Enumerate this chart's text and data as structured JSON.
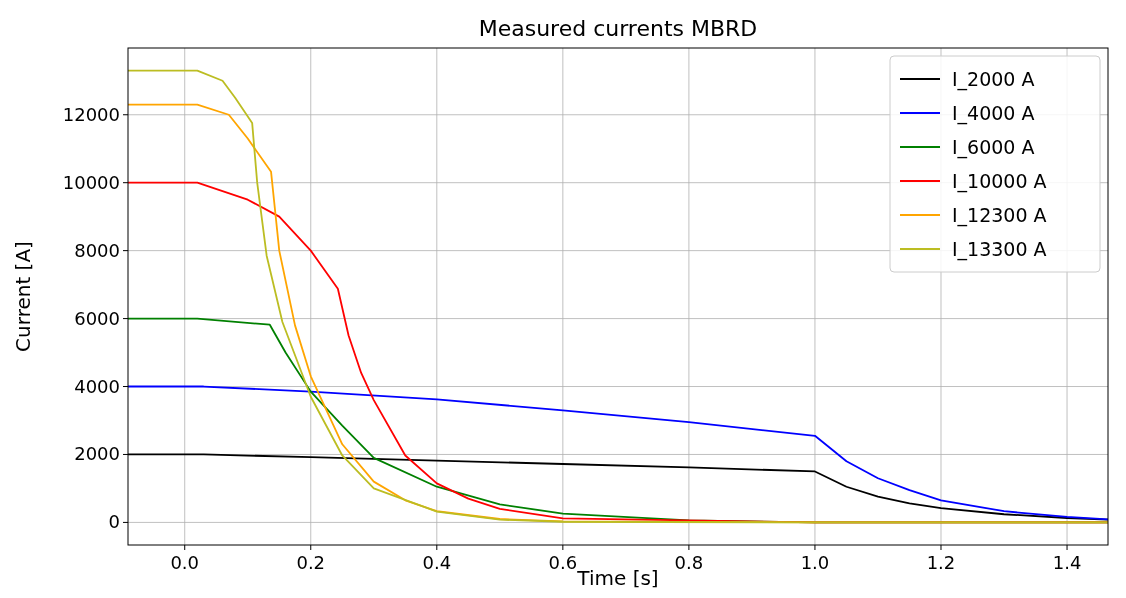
{
  "chart_data": {
    "type": "line",
    "title": "Measured currents MBRD",
    "xlabel": "Time [s]",
    "ylabel": "Current [A]",
    "xlim": [
      -0.09,
      1.465
    ],
    "ylim": [
      -665,
      13965
    ],
    "xticks": [
      {
        "value": 0,
        "label": "0.0"
      },
      {
        "value": 0.2,
        "label": "0.2"
      },
      {
        "value": 0.4,
        "label": "0.4"
      },
      {
        "value": 0.6,
        "label": "0.6"
      },
      {
        "value": 0.8,
        "label": "0.8"
      },
      {
        "value": 1,
        "label": "1.0"
      },
      {
        "value": 1.2,
        "label": "1.2"
      },
      {
        "value": 1.4,
        "label": "1.4"
      }
    ],
    "yticks": [
      0,
      2000,
      4000,
      6000,
      8000,
      10000,
      12000
    ],
    "grid": true,
    "legend": "top right",
    "series": [
      {
        "name": "I_2000 A",
        "color": "#000000",
        "x": [
          -0.09,
          0.03,
          0.2,
          0.4,
          0.6,
          0.8,
          1.0,
          1.05,
          1.1,
          1.15,
          1.2,
          1.3,
          1.4,
          1.465
        ],
        "values": [
          2000,
          2000,
          1920,
          1820,
          1720,
          1620,
          1500,
          1050,
          760,
          560,
          420,
          240,
          130,
          80
        ]
      },
      {
        "name": "I_4000 A",
        "color": "#0000ff",
        "x": [
          -0.09,
          0.03,
          0.2,
          0.4,
          0.6,
          0.8,
          1.0,
          1.05,
          1.1,
          1.15,
          1.2,
          1.3,
          1.4,
          1.465
        ],
        "values": [
          4000,
          4000,
          3850,
          3620,
          3300,
          2950,
          2550,
          1800,
          1300,
          950,
          650,
          330,
          160,
          90
        ]
      },
      {
        "name": "I_6000 A",
        "color": "#008000",
        "x": [
          -0.09,
          0.02,
          0.135,
          0.16,
          0.2,
          0.25,
          0.3,
          0.4,
          0.5,
          0.6,
          0.8,
          1.0,
          1.465
        ],
        "values": [
          6000,
          6000,
          5820,
          5000,
          3850,
          2850,
          1900,
          1050,
          530,
          260,
          60,
          0,
          0
        ]
      },
      {
        "name": "I_10000 A",
        "color": "#ff0000",
        "x": [
          -0.09,
          0.02,
          0.1,
          0.15,
          0.2,
          0.243,
          0.26,
          0.28,
          0.3,
          0.35,
          0.4,
          0.45,
          0.5,
          0.6,
          1.0,
          1.465
        ],
        "values": [
          10000,
          10000,
          9500,
          9000,
          8000,
          6880,
          5500,
          4400,
          3600,
          1970,
          1150,
          700,
          400,
          120,
          0,
          0
        ]
      },
      {
        "name": "I_12300 A",
        "color": "#ffa500",
        "x": [
          -0.09,
          0.02,
          0.07,
          0.1,
          0.137,
          0.15,
          0.175,
          0.2,
          0.25,
          0.3,
          0.35,
          0.4,
          0.5,
          0.6,
          1.0,
          1.465
        ],
        "values": [
          12300,
          12300,
          12000,
          11300,
          10320,
          8000,
          5800,
          4300,
          2300,
          1200,
          650,
          330,
          100,
          30,
          0,
          0
        ]
      },
      {
        "name": "I_13300 A",
        "color": "#bcbd22",
        "x": [
          -0.09,
          0.02,
          0.06,
          0.08,
          0.107,
          0.115,
          0.13,
          0.155,
          0.2,
          0.25,
          0.3,
          0.4,
          0.5,
          0.6,
          1.0,
          1.465
        ],
        "values": [
          13300,
          13300,
          13000,
          12500,
          11760,
          10000,
          7850,
          5900,
          3700,
          1970,
          1000,
          320,
          80,
          20,
          0,
          0
        ]
      }
    ]
  }
}
